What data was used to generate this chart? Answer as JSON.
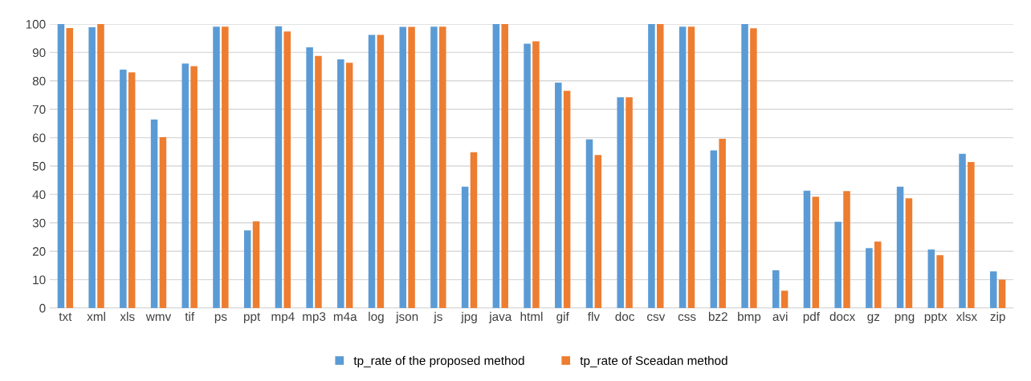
{
  "chart_data": {
    "type": "bar",
    "categories": [
      "txt",
      "xml",
      "xls",
      "wmv",
      "tif",
      "ps",
      "ppt",
      "mp4",
      "mp3",
      "m4a",
      "log",
      "json",
      "js",
      "jpg",
      "java",
      "html",
      "gif",
      "flv",
      "doc",
      "csv",
      "css",
      "bz2",
      "bmp",
      "avi",
      "pdf",
      "docx",
      "gz",
      "png",
      "pptx",
      "xlsx",
      "zip"
    ],
    "series": [
      {
        "name": "tp_rate of the proposed method",
        "color": "#5b9bd5",
        "values": [
          100,
          98.9,
          84,
          66.4,
          86.1,
          99.1,
          27.3,
          99.2,
          91.8,
          87.6,
          96.2,
          99,
          99.1,
          42.7,
          100,
          93.1,
          79.4,
          59.4,
          74.2,
          100,
          99.1,
          55.5,
          100,
          13.3,
          41.3,
          30.4,
          21.1,
          42.7,
          20.6,
          54.3,
          12.9
        ]
      },
      {
        "name": "tp_rate of Sceadan method",
        "color": "#ed7d31",
        "values": [
          98.6,
          100,
          83,
          60.2,
          85.2,
          99.1,
          30.5,
          97.4,
          88.8,
          86.4,
          96.2,
          99,
          99.1,
          54.9,
          100,
          93.9,
          76.5,
          53.9,
          74.2,
          100,
          99.1,
          59.6,
          98.5,
          6.1,
          39.2,
          41.2,
          23.4,
          38.6,
          18.6,
          51.4,
          10.0
        ]
      }
    ],
    "ylim": [
      0,
      100
    ],
    "yticks": [
      0,
      10,
      20,
      30,
      40,
      50,
      60,
      70,
      80,
      90,
      100
    ],
    "grid": "y",
    "legend": "bottom"
  }
}
